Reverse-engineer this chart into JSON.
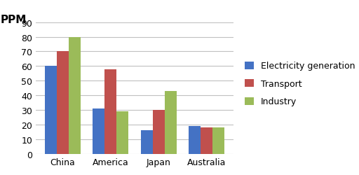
{
  "categories": [
    "China",
    "America",
    "Japan",
    "Australia"
  ],
  "series": [
    {
      "label": "Electricity generation",
      "color": "#4472C4",
      "values": [
        60,
        31,
        16,
        19
      ]
    },
    {
      "label": "Transport",
      "color": "#C0504D",
      "values": [
        70,
        58,
        30,
        18
      ]
    },
    {
      "label": "Industry",
      "color": "#9BBB59",
      "values": [
        80,
        29,
        43,
        18
      ]
    }
  ],
  "ppm_label": "PPM",
  "ylim": [
    0,
    90
  ],
  "yticks": [
    0,
    10,
    20,
    30,
    40,
    50,
    60,
    70,
    80,
    90
  ],
  "background_color": "#FFFFFF",
  "grid_color": "#C0C0C0",
  "bar_width": 0.25,
  "legend_fontsize": 9,
  "tick_fontsize": 9,
  "ppm_fontsize": 11
}
